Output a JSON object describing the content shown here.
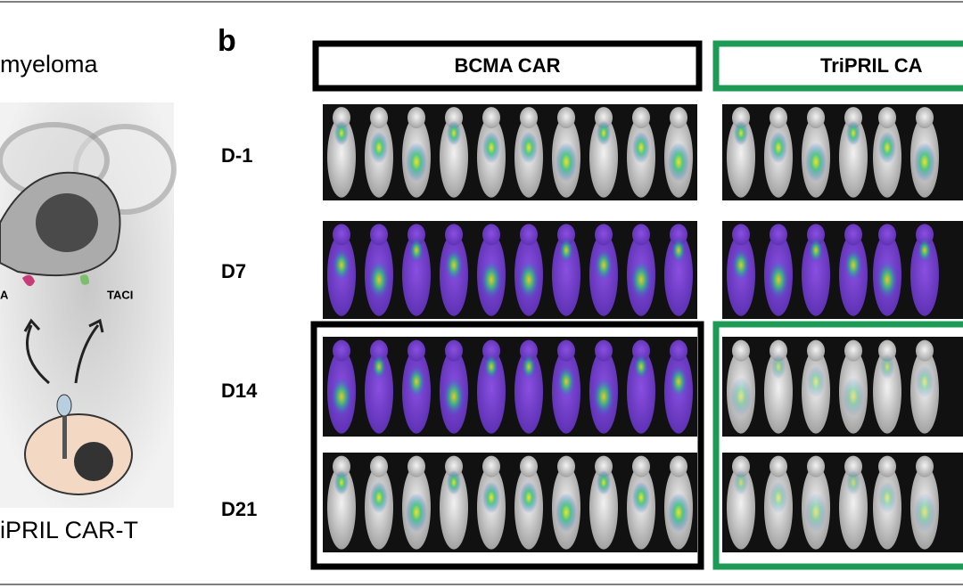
{
  "panel_a": {
    "title": "myeloma",
    "receptor_left": "A",
    "receptor_right": "TACI",
    "cell_label": "iPRIL CAR-T"
  },
  "panel_b": {
    "letter": "b",
    "groups": [
      "BCMA CAR",
      "TriPRIL CA"
    ],
    "rows": [
      "D-1",
      "D7",
      "D14",
      "D21"
    ]
  }
}
